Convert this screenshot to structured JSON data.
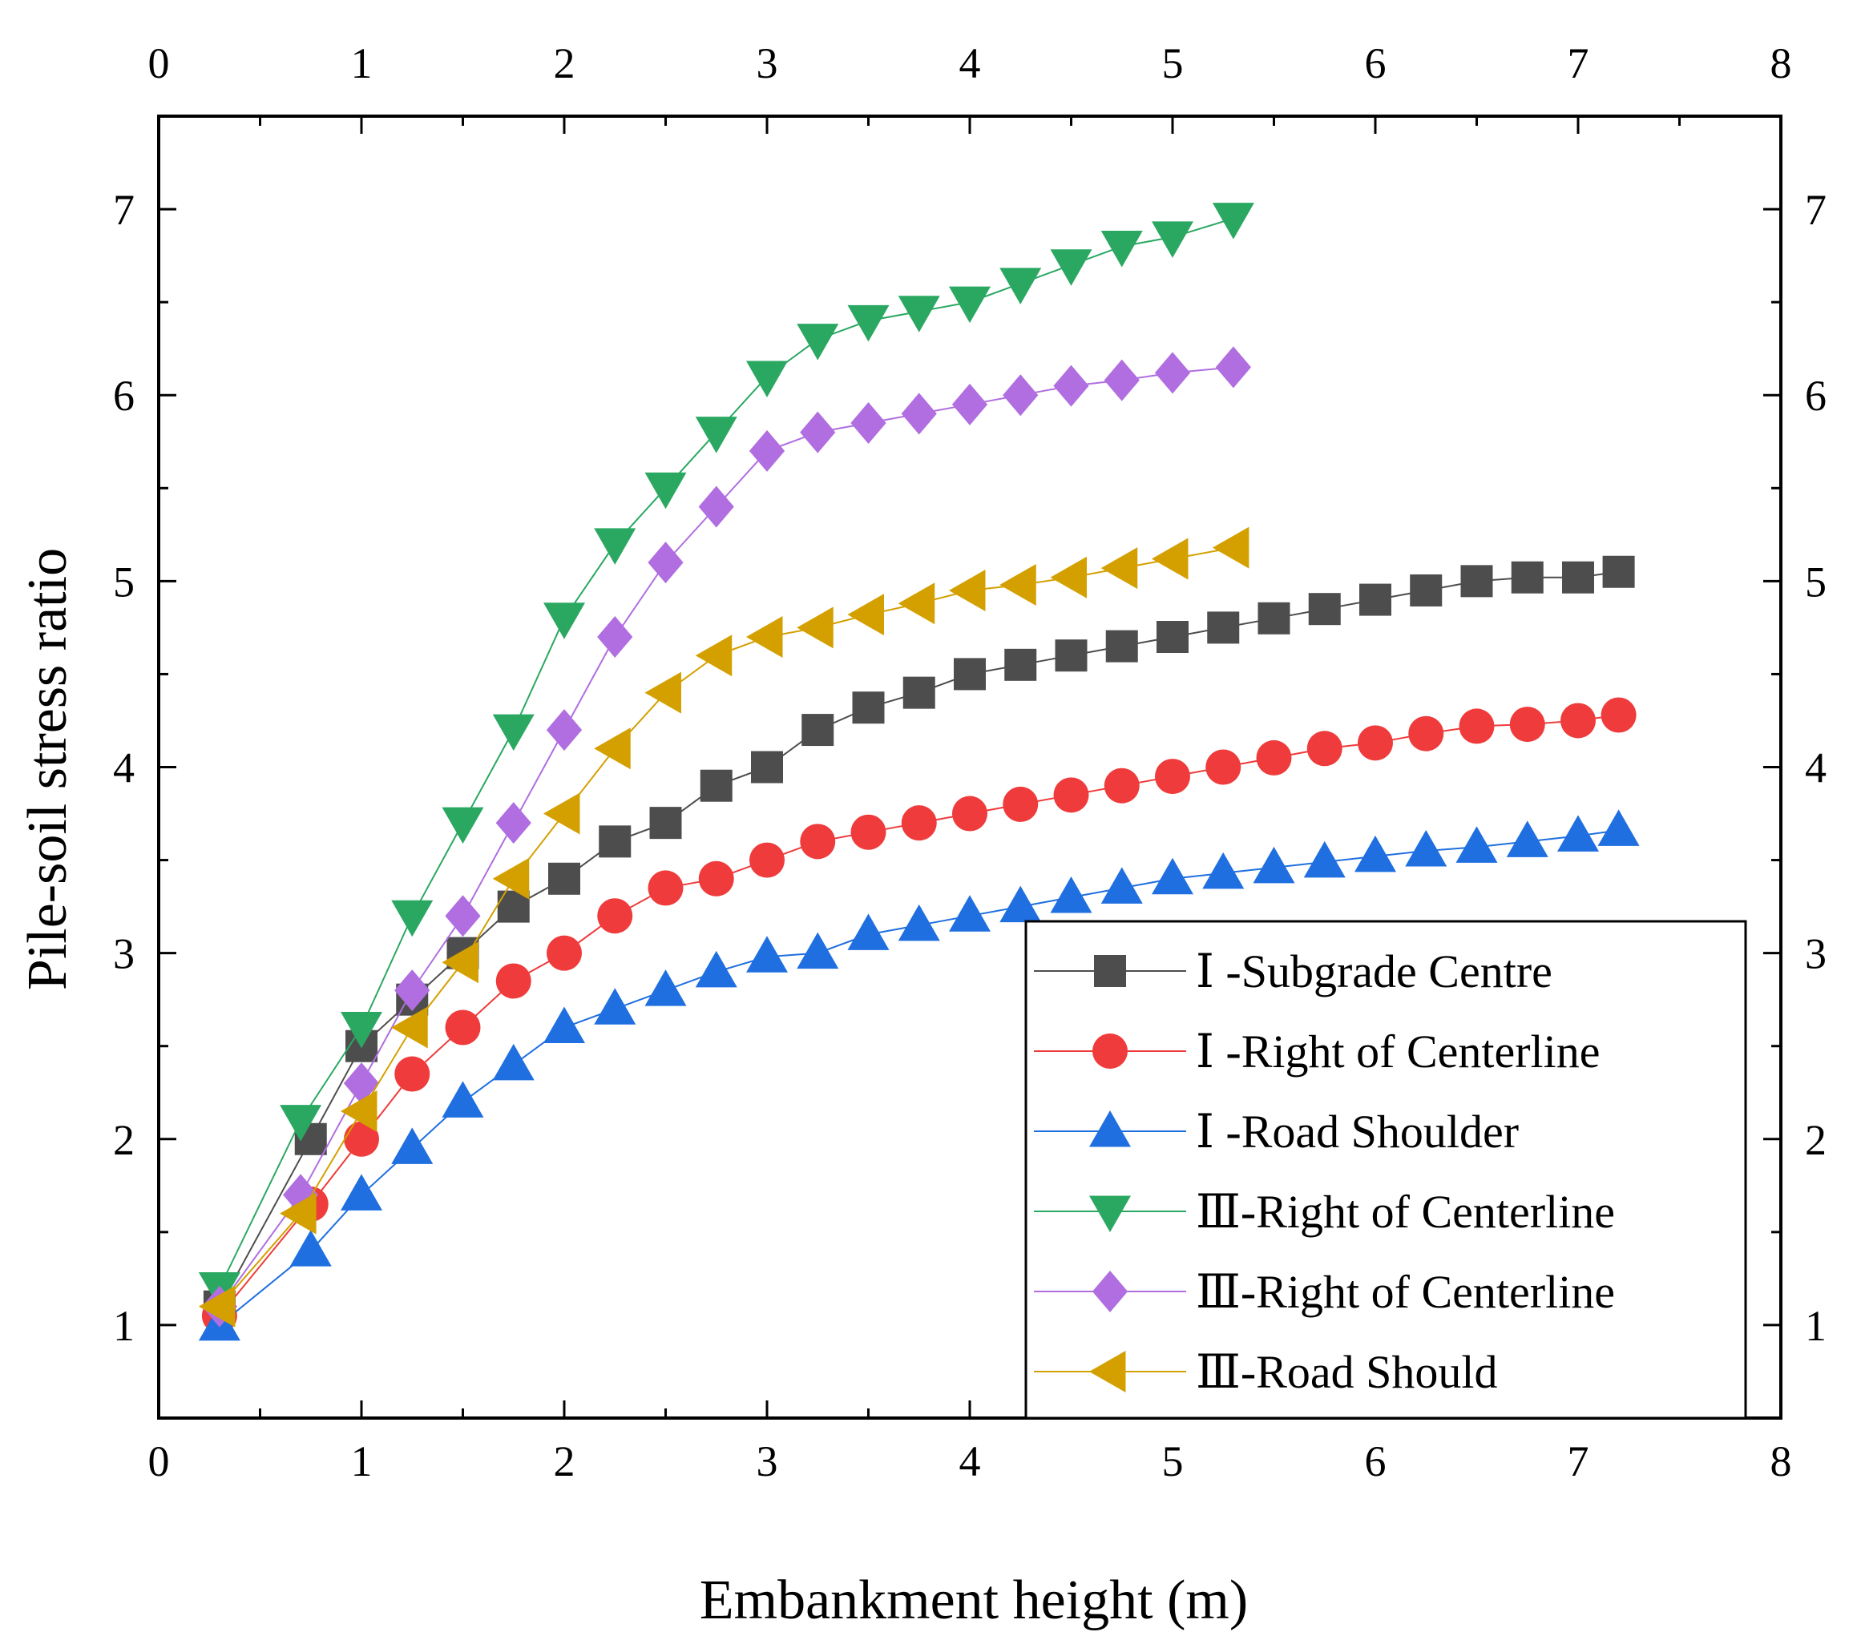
{
  "chart_data": {
    "type": "line",
    "title": "",
    "xlabel": "Embankment height (m)",
    "ylabel": "Pile-soil stress ratio",
    "xlim": [
      0,
      8
    ],
    "ylim": [
      0.5,
      7.5
    ],
    "xticks": [
      0,
      1,
      2,
      3,
      4,
      5,
      6,
      7,
      8
    ],
    "yticks": [
      1,
      2,
      3,
      4,
      5,
      6,
      7
    ],
    "mirror_axes": "top-and-right",
    "grid": false,
    "legend_position": "bottom-right",
    "series": [
      {
        "name": "Ⅰ -Subgrade Centre",
        "color": "#4d4d4d",
        "marker": "square",
        "x": [
          0.3,
          0.75,
          1.0,
          1.25,
          1.5,
          1.75,
          2.0,
          2.25,
          2.5,
          2.75,
          3.0,
          3.25,
          3.5,
          3.75,
          4.0,
          4.25,
          4.5,
          4.75,
          5.0,
          5.25,
          5.5,
          5.75,
          6.0,
          6.25,
          6.5,
          6.75,
          7.0,
          7.2
        ],
        "y": [
          1.1,
          2.0,
          2.5,
          2.75,
          3.0,
          3.25,
          3.4,
          3.6,
          3.7,
          3.9,
          4.0,
          4.2,
          4.32,
          4.4,
          4.5,
          4.55,
          4.6,
          4.65,
          4.7,
          4.75,
          4.8,
          4.85,
          4.9,
          4.95,
          5.0,
          5.02,
          5.02,
          5.05
        ]
      },
      {
        "name": "Ⅰ -Right of Centerline",
        "color": "#ef3b3b",
        "marker": "circle",
        "x": [
          0.3,
          0.75,
          1.0,
          1.25,
          1.5,
          1.75,
          2.0,
          2.25,
          2.5,
          2.75,
          3.0,
          3.25,
          3.5,
          3.75,
          4.0,
          4.25,
          4.5,
          4.75,
          5.0,
          5.25,
          5.5,
          5.75,
          6.0,
          6.25,
          6.5,
          6.75,
          7.0,
          7.2
        ],
        "y": [
          1.05,
          1.65,
          2.0,
          2.35,
          2.6,
          2.85,
          3.0,
          3.2,
          3.35,
          3.4,
          3.5,
          3.6,
          3.65,
          3.7,
          3.75,
          3.8,
          3.85,
          3.9,
          3.95,
          4.0,
          4.05,
          4.1,
          4.13,
          4.18,
          4.22,
          4.23,
          4.25,
          4.28
        ]
      },
      {
        "name": "Ⅰ -Road Shoulder",
        "color": "#1f6fe0",
        "marker": "triangle-up",
        "x": [
          0.3,
          0.75,
          1.0,
          1.25,
          1.5,
          1.75,
          2.0,
          2.25,
          2.5,
          2.75,
          3.0,
          3.25,
          3.5,
          3.75,
          4.0,
          4.25,
          4.5,
          4.75,
          5.0,
          5.25,
          5.5,
          5.75,
          6.0,
          6.25,
          6.5,
          6.75,
          7.0,
          7.2
        ],
        "y": [
          1.0,
          1.4,
          1.7,
          1.95,
          2.2,
          2.4,
          2.6,
          2.7,
          2.8,
          2.9,
          2.98,
          3.0,
          3.1,
          3.15,
          3.2,
          3.25,
          3.3,
          3.35,
          3.4,
          3.43,
          3.46,
          3.49,
          3.52,
          3.55,
          3.57,
          3.6,
          3.63,
          3.66
        ]
      },
      {
        "name": "Ⅲ-Right of Centerline",
        "color": "#2aa862",
        "marker": "triangle-down",
        "x": [
          0.3,
          0.7,
          1.0,
          1.25,
          1.5,
          1.75,
          2.0,
          2.25,
          2.5,
          2.75,
          3.0,
          3.25,
          3.5,
          3.75,
          4.0,
          4.25,
          4.5,
          4.75,
          5.0,
          5.3
        ],
        "y": [
          1.2,
          2.1,
          2.6,
          3.2,
          3.7,
          4.2,
          4.8,
          5.2,
          5.5,
          5.8,
          6.1,
          6.3,
          6.4,
          6.45,
          6.5,
          6.6,
          6.7,
          6.8,
          6.85,
          6.95
        ]
      },
      {
        "name": "Ⅲ-Right of Centerline",
        "color": "#b06ee0",
        "marker": "diamond",
        "x": [
          0.3,
          0.7,
          1.0,
          1.25,
          1.5,
          1.75,
          2.0,
          2.25,
          2.5,
          2.75,
          3.0,
          3.25,
          3.5,
          3.75,
          4.0,
          4.25,
          4.5,
          4.75,
          5.0,
          5.3
        ],
        "y": [
          1.1,
          1.7,
          2.3,
          2.8,
          3.2,
          3.7,
          4.2,
          4.7,
          5.1,
          5.4,
          5.7,
          5.8,
          5.85,
          5.9,
          5.95,
          6.0,
          6.05,
          6.08,
          6.12,
          6.15
        ]
      },
      {
        "name": "Ⅲ-Road Should",
        "color": "#d4a000",
        "marker": "triangle-left",
        "x": [
          0.3,
          0.7,
          1.0,
          1.25,
          1.5,
          1.75,
          2.0,
          2.25,
          2.5,
          2.75,
          3.0,
          3.25,
          3.5,
          3.75,
          4.0,
          4.25,
          4.5,
          4.75,
          5.0,
          5.3
        ],
        "y": [
          1.1,
          1.6,
          2.15,
          2.6,
          2.95,
          3.4,
          3.75,
          4.1,
          4.4,
          4.6,
          4.7,
          4.75,
          4.82,
          4.88,
          4.95,
          4.98,
          5.02,
          5.07,
          5.12,
          5.18
        ]
      }
    ]
  }
}
